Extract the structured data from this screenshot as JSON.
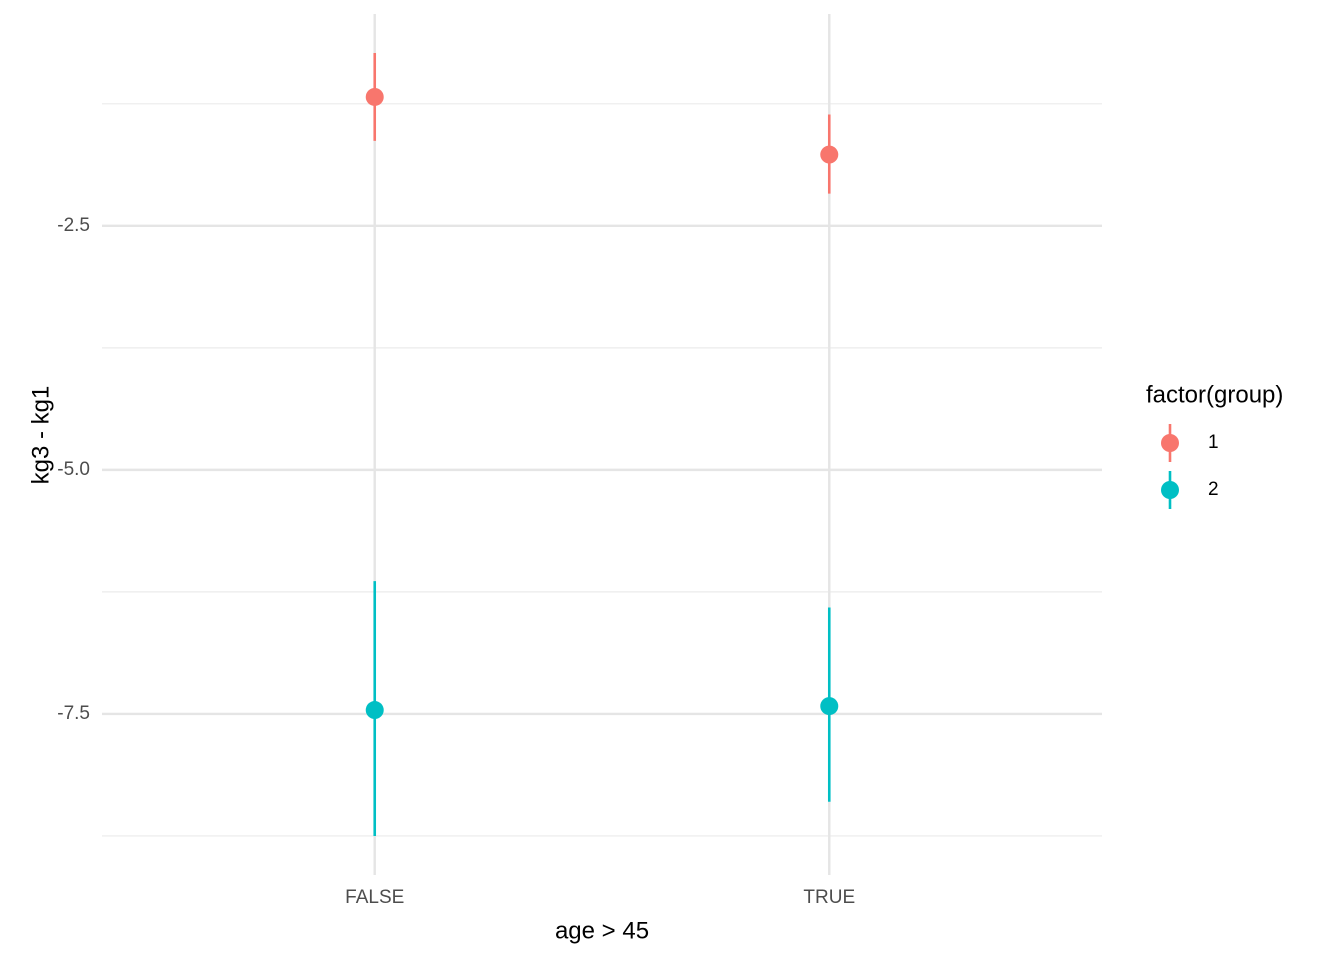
{
  "chart_data": {
    "type": "pointrange",
    "x_label": "age > 45",
    "y_label": "kg3 - kg1",
    "legend_title": "factor(group)",
    "legend_position": "right",
    "categories": [
      "FALSE",
      "TRUE"
    ],
    "series": [
      {
        "name": "1",
        "color": "#F8766D",
        "values": [
          -1.18,
          -1.77
        ],
        "lower": [
          -1.63,
          -2.17
        ],
        "upper": [
          -0.73,
          -1.36
        ]
      },
      {
        "name": "2",
        "color": "#00BFC4",
        "values": [
          -7.46,
          -7.42
        ],
        "lower": [
          -8.75,
          -8.4
        ],
        "upper": [
          -6.14,
          -6.41
        ]
      }
    ],
    "ylim": [
      -9.15,
      -0.33
    ],
    "yticks": [
      {
        "value": -2.5,
        "label": "-2.5"
      },
      {
        "value": -5,
        "label": "-5.0"
      },
      {
        "value": -7.5,
        "label": "-7.5"
      }
    ],
    "y_minor_ticks": [
      -1.25,
      -3.75,
      -6.25,
      -8.75
    ],
    "grid": true
  }
}
